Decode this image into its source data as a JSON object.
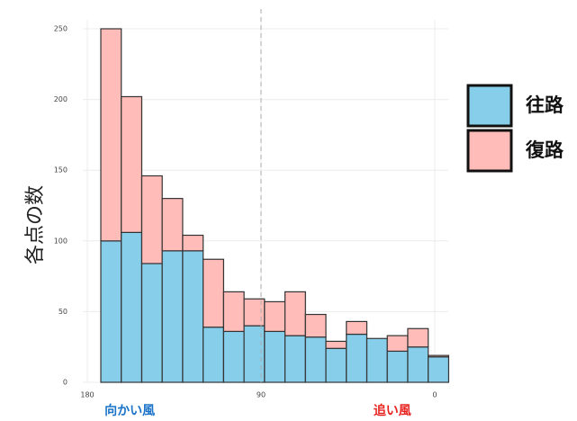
{
  "chart_data": {
    "type": "histogram",
    "stacked": true,
    "bins": [
      173,
      162.4,
      151.8,
      141.2,
      130.6,
      120,
      109.4,
      98.8,
      88.2,
      77.6,
      67,
      56.4,
      45.8,
      35.2,
      24.6,
      14,
      3.4,
      -7.2
    ],
    "series": [
      {
        "name": "往路",
        "color": "#87ceeb",
        "values": [
          100,
          106,
          84,
          93,
          93,
          39,
          36,
          40,
          36,
          33,
          32,
          24,
          34,
          31,
          22,
          25,
          18
        ]
      },
      {
        "name": "復路",
        "color": "#ffbcb8",
        "values": [
          150,
          96,
          62,
          37,
          11,
          48,
          28,
          19,
          21,
          31,
          16,
          5,
          9,
          0,
          11,
          13,
          1
        ]
      }
    ],
    "xlim": [
      180,
      0
    ],
    "xticks": [
      180,
      90,
      0
    ],
    "ylim": [
      0,
      250
    ],
    "yticks": [
      0,
      50,
      100,
      150,
      200,
      250
    ],
    "grid": true,
    "vline": 90,
    "ylabel": "各点の数",
    "annotations": [
      {
        "text": "向かい風",
        "color": "#1a73c8",
        "x": 158
      },
      {
        "text": "追い風",
        "color": "#e8231f",
        "x": 22
      }
    ],
    "legend": "right"
  }
}
